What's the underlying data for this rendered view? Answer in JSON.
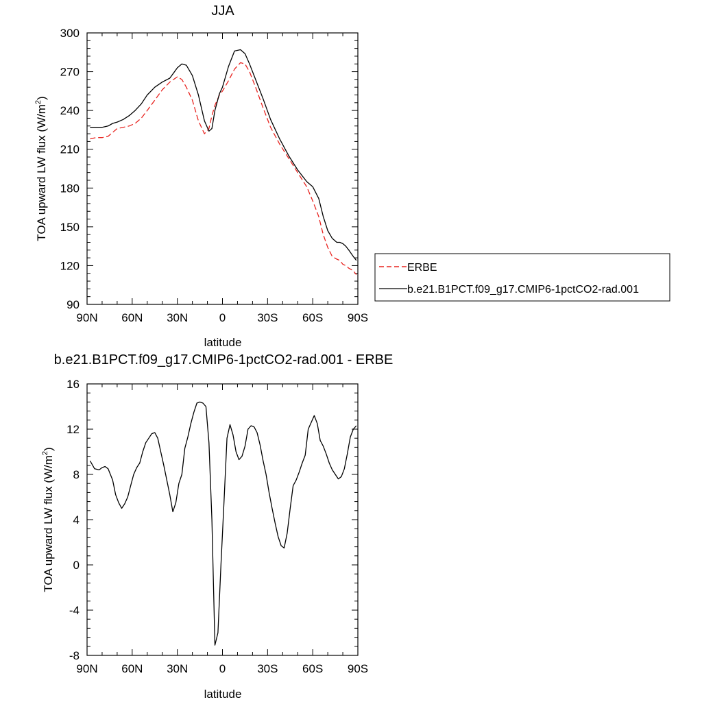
{
  "chart_data": [
    {
      "type": "line",
      "title": "JJA",
      "xlabel": "latitude",
      "ylabel_main": "TOA upward LW flux (W/m",
      "ylabel_sup": "2",
      "ylabel_close": ")",
      "xlim": [
        90,
        -90
      ],
      "ylim": [
        90,
        300
      ],
      "xticks": [
        90,
        60,
        30,
        0,
        -30,
        -60,
        -90
      ],
      "xtick_labels": [
        "90N",
        "60N",
        "30N",
        "0",
        "30S",
        "60S",
        "90S"
      ],
      "yticks": [
        90,
        120,
        150,
        180,
        210,
        240,
        270,
        300
      ],
      "ytick_labels": [
        "90",
        "120",
        "150",
        "180",
        "210",
        "240",
        "270",
        "300"
      ],
      "legend_position": "right",
      "series": [
        {
          "name": "ERBE",
          "color": "#e8231f",
          "dashed": true,
          "x": [
            88,
            84,
            80,
            76,
            73,
            70,
            66,
            62,
            58,
            54,
            50,
            45,
            40,
            35,
            30,
            27,
            24,
            20,
            16,
            12,
            9,
            7,
            5,
            2,
            0,
            -4,
            -8,
            -12,
            -15,
            -18,
            -22,
            -27,
            -32,
            -38,
            -44,
            -50,
            -56,
            -60,
            -64,
            -67,
            -70,
            -73,
            -76,
            -78,
            -80,
            -82,
            -84,
            -87,
            -89
          ],
          "y": [
            218,
            219,
            219,
            220,
            223,
            226,
            227,
            228,
            230,
            234,
            240,
            248,
            256,
            262,
            266,
            264,
            258,
            248,
            232,
            222,
            226,
            236,
            244,
            252,
            255,
            263,
            272,
            277,
            276,
            270,
            258,
            242,
            227,
            214,
            203,
            192,
            181,
            170,
            158,
            144,
            134,
            127,
            125,
            124,
            121,
            120,
            118,
            116,
            113
          ]
        },
        {
          "name": "b.e21.B1PCT.f09_g17.CMIP6-1pctCO2-rad.001",
          "color": "#000000",
          "dashed": false,
          "x": [
            88,
            84,
            80,
            76,
            73,
            70,
            66,
            62,
            58,
            54,
            50,
            45,
            40,
            35,
            30,
            27,
            24,
            20,
            16,
            12,
            9,
            7,
            5,
            2,
            0,
            -4,
            -8,
            -12,
            -15,
            -18,
            -22,
            -27,
            -32,
            -38,
            -44,
            -50,
            -56,
            -60,
            -64,
            -67,
            -70,
            -73,
            -76,
            -78,
            -80,
            -82,
            -84,
            -87,
            -89
          ],
          "y": [
            227,
            227,
            227,
            228,
            230,
            231,
            233,
            236,
            240,
            245,
            252,
            258,
            262,
            265,
            273,
            276,
            275,
            267,
            252,
            232,
            224,
            226,
            240,
            253,
            258,
            274,
            286,
            287,
            284,
            276,
            264,
            249,
            233,
            218,
            205,
            194,
            185,
            181,
            172,
            158,
            147,
            141,
            138,
            138,
            137,
            135,
            132,
            127,
            124
          ]
        }
      ]
    },
    {
      "type": "line",
      "title": "b.e21.B1PCT.f09_g17.CMIP6-1pctCO2-rad.001 - ERBE",
      "xlabel": "latitude",
      "ylabel_main": "TOA upward LW flux (W/m",
      "ylabel_sup": "2",
      "ylabel_close": ")",
      "xlim": [
        90,
        -90
      ],
      "ylim": [
        -8,
        16
      ],
      "xticks": [
        90,
        60,
        30,
        0,
        -30,
        -60,
        -90
      ],
      "xtick_labels": [
        "90N",
        "60N",
        "30N",
        "0",
        "30S",
        "60S",
        "90S"
      ],
      "yticks": [
        -8,
        -4,
        0,
        4,
        8,
        12,
        16
      ],
      "ytick_labels": [
        "-8",
        "-4",
        "0",
        "4",
        "8",
        "12",
        "16"
      ],
      "series": [
        {
          "color": "#000000",
          "dashed": false,
          "x": [
            88,
            85,
            82,
            80,
            78,
            76,
            73,
            71,
            69,
            67,
            65,
            63,
            61,
            59,
            57,
            55,
            53,
            51,
            49,
            47,
            45,
            43,
            41,
            39,
            37,
            35,
            33,
            31,
            29,
            27,
            25,
            23,
            21,
            19,
            17,
            15,
            13,
            11,
            9,
            7,
            5,
            3,
            1,
            -1,
            -3,
            -5,
            -7,
            -9,
            -11,
            -13,
            -15,
            -17,
            -19,
            -21,
            -23,
            -25,
            -27,
            -29,
            -31,
            -33,
            -35,
            -37,
            -39,
            -41,
            -43,
            -45,
            -47,
            -49,
            -51,
            -53,
            -55,
            -57,
            -59,
            -61,
            -63,
            -65,
            -67,
            -69,
            -71,
            -73,
            -75,
            -77,
            -79,
            -81,
            -83,
            -85,
            -87,
            -89
          ],
          "y": [
            9.2,
            8.5,
            8.4,
            8.6,
            8.7,
            8.5,
            7.5,
            6.2,
            5.5,
            5.0,
            5.4,
            6.0,
            7.0,
            8.0,
            8.6,
            9.0,
            10.0,
            10.8,
            11.2,
            11.6,
            11.7,
            11.2,
            10.0,
            8.8,
            7.5,
            6.2,
            4.7,
            5.5,
            7.2,
            8.0,
            10.3,
            11.3,
            12.5,
            13.5,
            14.3,
            14.4,
            14.3,
            14.0,
            10.8,
            4.0,
            -7.1,
            -6.0,
            0.0,
            5.5,
            11.2,
            12.4,
            11.5,
            10.0,
            9.3,
            9.6,
            10.5,
            12.0,
            12.3,
            12.2,
            11.7,
            10.6,
            9.2,
            8.0,
            6.4,
            5.0,
            3.7,
            2.5,
            1.7,
            1.5,
            2.8,
            5.0,
            7.0,
            7.5,
            8.2,
            9.0,
            9.7,
            12.0,
            12.6,
            13.2,
            12.5,
            11.0,
            10.5,
            9.8,
            9.0,
            8.4,
            8.0,
            7.6,
            7.8,
            8.5,
            9.8,
            11.3,
            12.0,
            12.3
          ]
        }
      ]
    }
  ]
}
